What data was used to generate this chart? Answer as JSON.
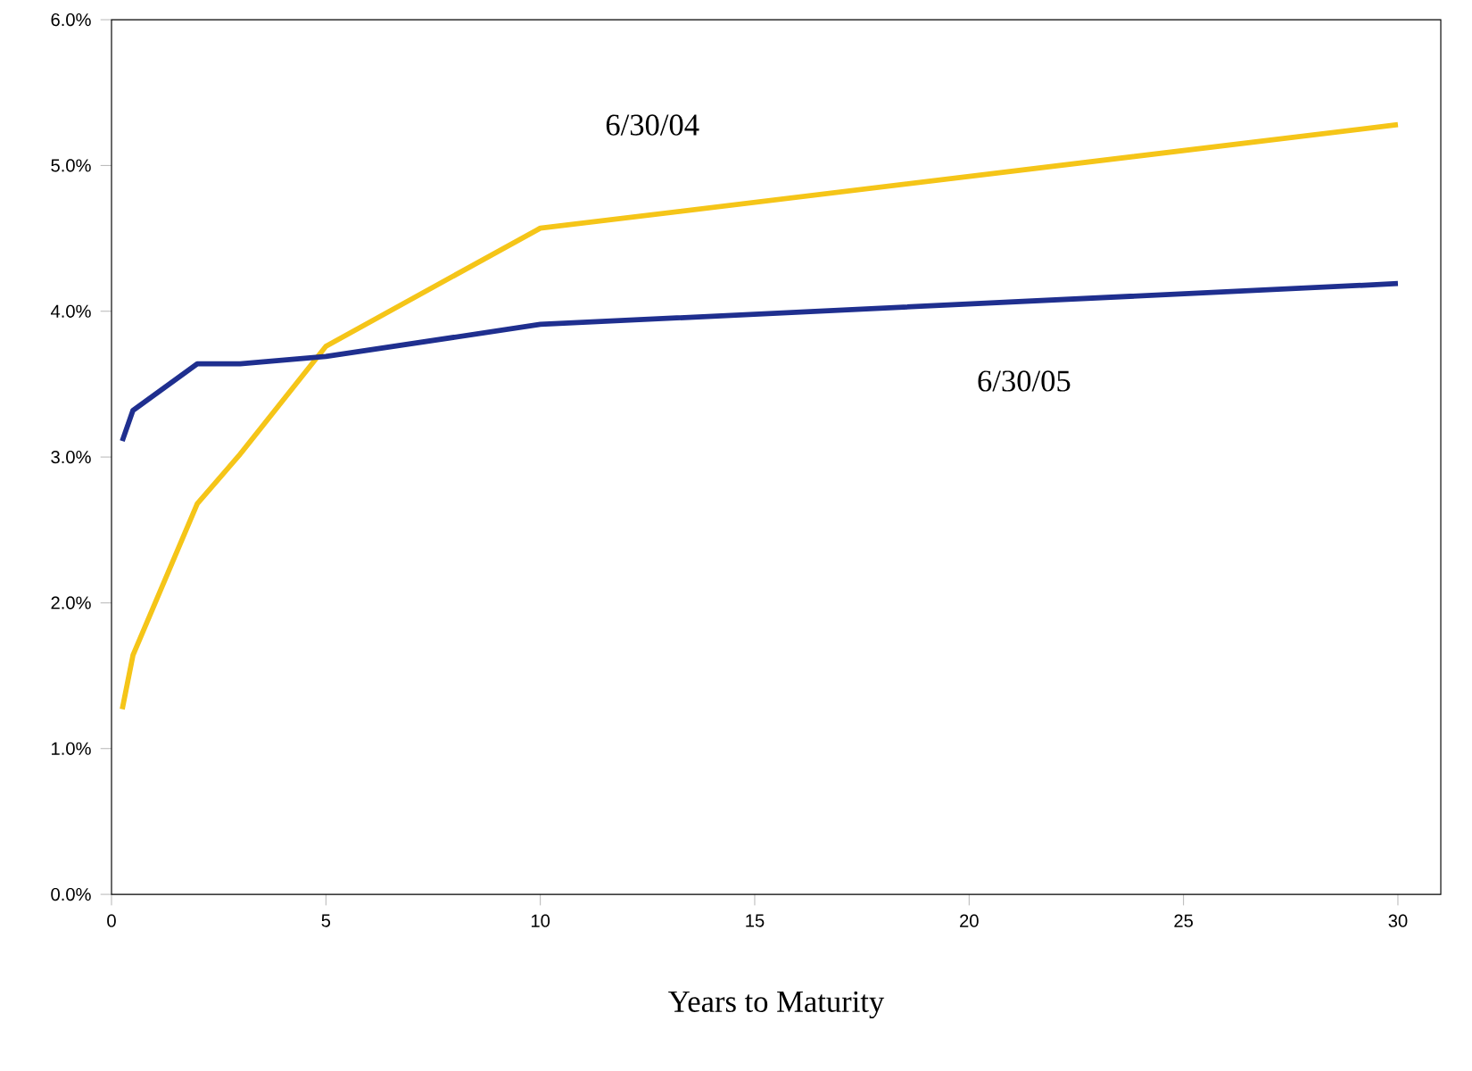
{
  "chart_data": {
    "type": "line",
    "xlabel": "Years to Maturity",
    "xlim": [
      0,
      31
    ],
    "ylim": [
      0,
      6
    ],
    "xticks": [
      0,
      5,
      10,
      15,
      20,
      25,
      30
    ],
    "yticks": [
      {
        "value": 0,
        "label": "0.0%"
      },
      {
        "value": 1,
        "label": "1.0%"
      },
      {
        "value": 2,
        "label": "2.0%"
      },
      {
        "value": 3,
        "label": "3.0%"
      },
      {
        "value": 4,
        "label": "4.0%"
      },
      {
        "value": 5,
        "label": "5.0%"
      },
      {
        "value": 6,
        "label": "6.0%"
      }
    ],
    "grid": false,
    "legend": false,
    "marker": "none",
    "line_style": "solid",
    "series": [
      {
        "name": "6/30/04",
        "color": "#f5c518",
        "x": [
          0.25,
          0.5,
          2,
          3,
          5,
          10,
          30
        ],
        "values": [
          1.27,
          1.64,
          2.68,
          3.02,
          3.76,
          4.57,
          5.28
        ]
      },
      {
        "name": "6/30/05",
        "color": "#1f2f8f",
        "x": [
          0.25,
          0.5,
          2,
          3,
          5,
          10,
          30
        ],
        "values": [
          3.11,
          3.32,
          3.64,
          3.64,
          3.69,
          3.91,
          4.19
        ]
      }
    ]
  }
}
